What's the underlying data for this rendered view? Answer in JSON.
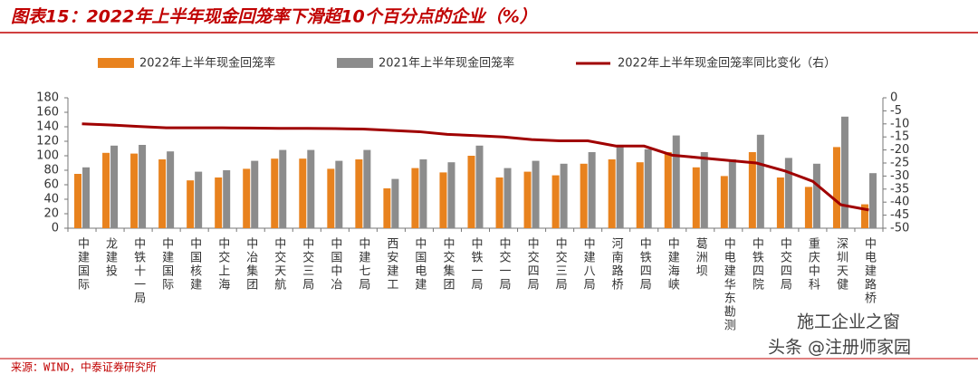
{
  "chart_data": {
    "type": "bar",
    "title": "图表15：2022年上半年现金回笼率下滑超10个百分点的企业（%）",
    "source": "来源：WIND，中泰证券研究所",
    "annotations": [
      "施工企业之窗",
      "头条 @注册师家园"
    ],
    "categories": [
      "中建国际",
      "龙建投",
      "中铁十一局",
      "中建国际",
      "中国核建",
      "中交上海",
      "中冶集团",
      "中交天航",
      "中交三局",
      "中国中冶",
      "中建七局",
      "西安建工",
      "中国电建",
      "中交集团",
      "中铁一局",
      "中交一局",
      "中交四局",
      "中交三局",
      "中建八局",
      "河南路桥",
      "中铁四局",
      "中建海峡",
      "葛洲坝",
      "中电建华东勘测",
      "中铁四院",
      "中交四局",
      "重庆中科",
      "深圳天健",
      "中电建路桥"
    ],
    "series": [
      {
        "name": "2022年上半年现金回笼率",
        "type": "bar",
        "color": "#e8821e",
        "values": [
          75,
          104,
          103,
          95,
          66,
          70,
          82,
          96,
          96,
          82,
          95,
          55,
          83,
          77,
          100,
          70,
          78,
          73,
          89,
          95,
          91,
          105,
          84,
          72,
          105,
          70,
          57,
          112,
          33
        ]
      },
      {
        "name": "2021年上半年现金回笼率",
        "type": "bar",
        "color": "#8c8c8c",
        "values": [
          84,
          114,
          115,
          106,
          78,
          80,
          93,
          108,
          108,
          93,
          108,
          68,
          95,
          91,
          114,
          83,
          93,
          89,
          105,
          114,
          109,
          128,
          105,
          95,
          129,
          97,
          89,
          154,
          76
        ]
      },
      {
        "name": "2022年上半年现金回笼率同比变化（右）",
        "type": "line",
        "axis": "y2",
        "color": "#a00000",
        "values": [
          -10,
          -10.4,
          -11,
          -11.5,
          -11.5,
          -11.5,
          -11.6,
          -11.7,
          -11.7,
          -11.8,
          -12,
          -12.5,
          -13,
          -14,
          -14.5,
          -15,
          -16,
          -16.5,
          -16.5,
          -18.5,
          -18.5,
          -22,
          -23,
          -24,
          -25,
          -28,
          -32,
          -41,
          -43
        ]
      }
    ],
    "ylim": [
      0,
      180
    ],
    "yticks": [
      0,
      20,
      40,
      60,
      80,
      100,
      120,
      140,
      160,
      180
    ],
    "y2lim": [
      -50,
      0
    ],
    "y2ticks": [
      0,
      -5,
      -10,
      -15,
      -20,
      -25,
      -30,
      -35,
      -40,
      -45,
      -50
    ],
    "grid": false
  }
}
